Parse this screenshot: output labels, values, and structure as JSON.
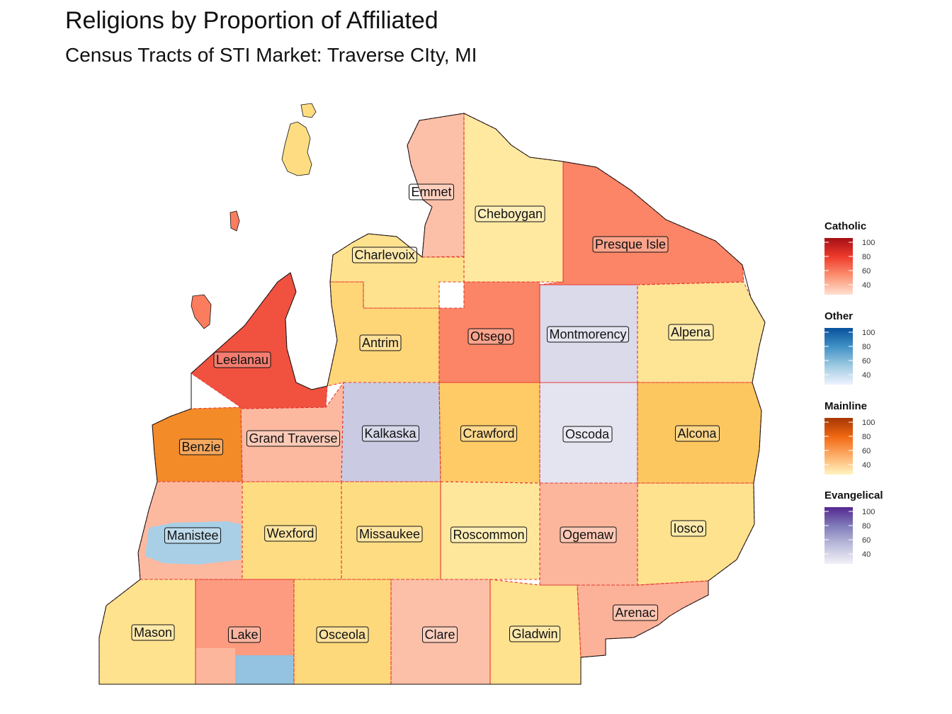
{
  "title": "Religions by Proportion of Affiliated",
  "subtitle": "Census Tracts of STI Market: Traverse CIty, MI",
  "counties": [
    {
      "name": "Emmet",
      "group": "Catholic",
      "value": 42
    },
    {
      "name": "Cheboygan",
      "group": "Mainline",
      "value": 35
    },
    {
      "name": "Charlevoix",
      "group": "Mainline",
      "value": 38
    },
    {
      "name": "Presque Isle",
      "group": "Catholic",
      "value": 58
    },
    {
      "name": "Leelanau",
      "group": "Catholic",
      "value": 72
    },
    {
      "name": "Antrim",
      "group": "Mainline",
      "value": 42
    },
    {
      "name": "Otsego",
      "group": "Catholic",
      "value": 58
    },
    {
      "name": "Montmorency",
      "group": "Evangelical",
      "value": 40
    },
    {
      "name": "Alpena",
      "group": "Mainline",
      "value": 37
    },
    {
      "name": "Benzie",
      "group": "Mainline",
      "value": 62
    },
    {
      "name": "Grand Traverse",
      "group": "Catholic",
      "value": 44
    },
    {
      "name": "Kalkaska",
      "group": "Evangelical",
      "value": 48
    },
    {
      "name": "Crawford",
      "group": "Mainline",
      "value": 45
    },
    {
      "name": "Oscoda",
      "group": "Evangelical",
      "value": 36
    },
    {
      "name": "Alcona",
      "group": "Mainline",
      "value": 46
    },
    {
      "name": "Manistee",
      "group": "Catholic",
      "value": 44
    },
    {
      "name": "Wexford",
      "group": "Mainline",
      "value": 40
    },
    {
      "name": "Missaukee",
      "group": "Mainline",
      "value": 40
    },
    {
      "name": "Roscommon",
      "group": "Mainline",
      "value": 36
    },
    {
      "name": "Ogemaw",
      "group": "Catholic",
      "value": 45
    },
    {
      "name": "Iosco",
      "group": "Mainline",
      "value": 38
    },
    {
      "name": "Arenac",
      "group": "Catholic",
      "value": 46
    },
    {
      "name": "Mason",
      "group": "Mainline",
      "value": 38
    },
    {
      "name": "Lake",
      "group": "Catholic",
      "value": 52
    },
    {
      "name": "Osceola",
      "group": "Mainline",
      "value": 41
    },
    {
      "name": "Clare",
      "group": "Catholic",
      "value": 42
    },
    {
      "name": "Gladwin",
      "group": "Mainline",
      "value": 38
    }
  ],
  "legend": [
    {
      "title": "Catholic",
      "ticks": [
        "100",
        "80",
        "60",
        "40"
      ],
      "colors": [
        "#a50f15",
        "#ef3b2c",
        "#fc9272",
        "#fee0d2"
      ]
    },
    {
      "title": "Other",
      "ticks": [
        "100",
        "80",
        "60",
        "40"
      ],
      "colors": [
        "#08519c",
        "#4292c6",
        "#9ecae1",
        "#eff3ff"
      ]
    },
    {
      "title": "Mainline",
      "ticks": [
        "100",
        "80",
        "60",
        "40"
      ],
      "colors": [
        "#a63603",
        "#f16913",
        "#fdae6b",
        "#fff5c0"
      ]
    },
    {
      "title": "Evangelical",
      "ticks": [
        "100",
        "80",
        "60",
        "40"
      ],
      "colors": [
        "#54278f",
        "#807dba",
        "#bcbddc",
        "#f2f0f7"
      ]
    }
  ]
}
